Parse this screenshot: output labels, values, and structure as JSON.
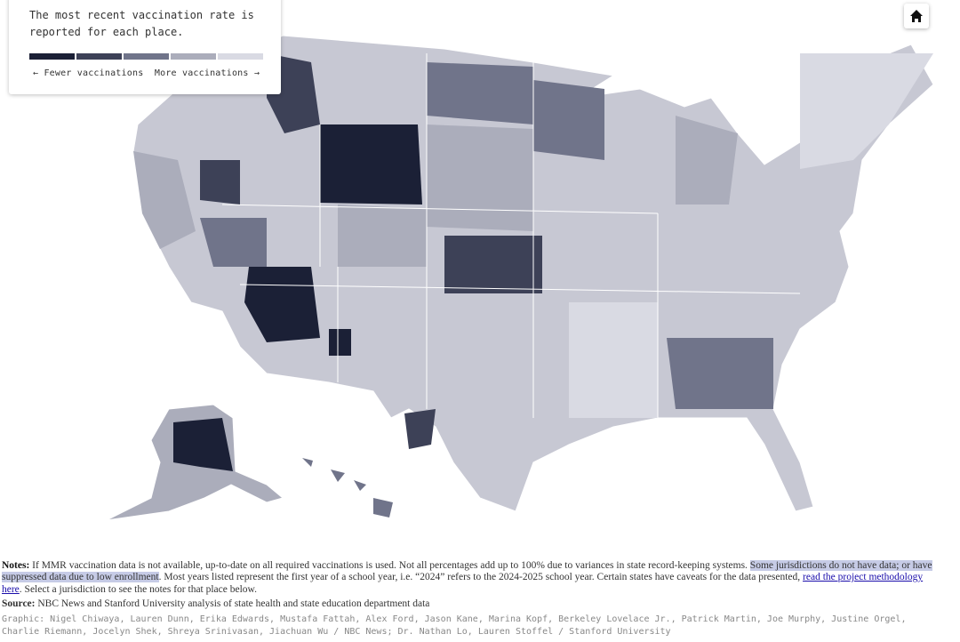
{
  "legend": {
    "text": "The most recent vaccination rate is reported for each place.",
    "fewer": "← Fewer vaccinations",
    "more": "More vaccinations →",
    "colors": [
      "#1b2036",
      "#3d4157",
      "#70748a",
      "#abadbb",
      "#d9dae3"
    ]
  },
  "notes": {
    "label": "Notes:",
    "text1": "If MMR vaccination data is not available, up-to-date on all required vaccinations is used. Not all percentages add up to 100% due to variances in state record-keeping systems. ",
    "highlight": "Some jurisdictions do not have data; or have suppressed data due to low enrollment",
    "text2": ". Most years listed represent the first year of a school year, i.e. “2024” refers to the 2024-2025 school year. Certain states have caveats for the data presented, ",
    "link": "read the project methodology here",
    "text3": ". Select a jurisdiction to see the notes for that place below."
  },
  "source": {
    "label": "Source:",
    "text": "NBC News and Stanford University analysis of state health and state education department data"
  },
  "credits": "Graphic: Nigel Chiwaya, Lauren Dunn, Erika Edwards, Mustafa Fattah, Alex Ford, Jason Kane, Marina Kopf, Berkeley Lovelace Jr., Patrick Martin, Joe Murphy, Justine Orgel, Charlie Riemann, Jocelyn Shek, Shreya Srinivasan, Jiachuan Wu / NBC News; Dr. Nathan Lo, Lauren Stoffel / Stanford University"
}
